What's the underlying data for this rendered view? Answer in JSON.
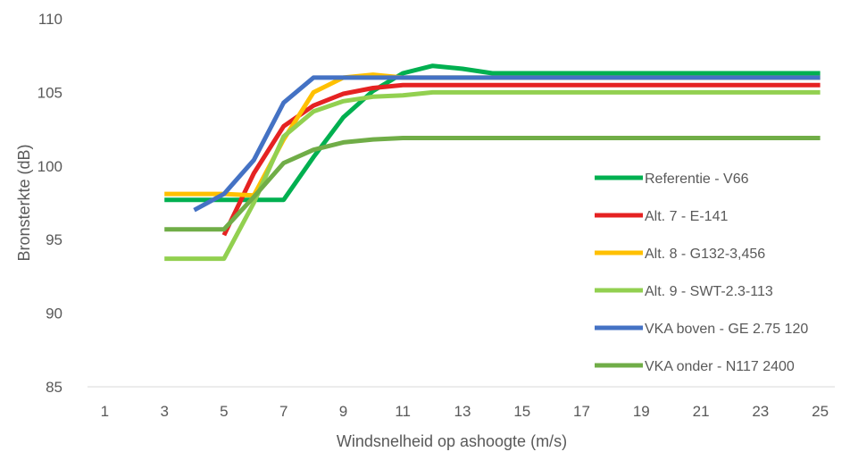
{
  "chart_data": {
    "type": "line",
    "title": "",
    "xlabel": "Windsnelheid op ashoogte (m/s)",
    "ylabel": "Bronsterkte (dB)",
    "xlim": [
      0,
      26
    ],
    "ylim": [
      85,
      110
    ],
    "x_ticks": [
      1,
      3,
      5,
      7,
      9,
      11,
      13,
      15,
      17,
      19,
      21,
      23,
      25
    ],
    "y_ticks": [
      85,
      90,
      95,
      100,
      105,
      110
    ],
    "grid": false,
    "legend_position": "right",
    "series": [
      {
        "name": "Referentie - V66",
        "color": "#00B050",
        "points": [
          [
            3,
            97.7
          ],
          [
            4,
            97.7
          ],
          [
            5,
            97.7
          ],
          [
            6,
            97.7
          ],
          [
            7,
            97.7
          ],
          [
            8,
            100.6
          ],
          [
            9,
            103.3
          ],
          [
            10,
            105.1
          ],
          [
            11,
            106.3
          ],
          [
            12,
            106.8
          ],
          [
            13,
            106.6
          ],
          [
            14,
            106.3
          ],
          [
            15,
            106.3
          ],
          [
            16,
            106.3
          ],
          [
            17,
            106.3
          ],
          [
            18,
            106.3
          ],
          [
            19,
            106.3
          ],
          [
            20,
            106.3
          ],
          [
            21,
            106.3
          ],
          [
            22,
            106.3
          ],
          [
            23,
            106.3
          ],
          [
            24,
            106.3
          ],
          [
            25,
            106.3
          ]
        ]
      },
      {
        "name": "Alt. 7 - E-141",
        "color": "#E52222",
        "points": [
          [
            5,
            95.3
          ],
          [
            6,
            99.5
          ],
          [
            7,
            102.7
          ],
          [
            8,
            104.1
          ],
          [
            9,
            104.9
          ],
          [
            10,
            105.3
          ],
          [
            11,
            105.5
          ],
          [
            12,
            105.5
          ],
          [
            13,
            105.5
          ],
          [
            14,
            105.5
          ],
          [
            15,
            105.5
          ],
          [
            16,
            105.5
          ],
          [
            17,
            105.5
          ],
          [
            18,
            105.5
          ],
          [
            19,
            105.5
          ],
          [
            20,
            105.5
          ],
          [
            21,
            105.5
          ],
          [
            22,
            105.5
          ],
          [
            23,
            105.5
          ],
          [
            24,
            105.5
          ],
          [
            25,
            105.5
          ]
        ]
      },
      {
        "name": "Alt. 8 - G132-3,456",
        "color": "#FFC000",
        "points": [
          [
            3,
            98.1
          ],
          [
            4,
            98.1
          ],
          [
            5,
            98.1
          ],
          [
            6,
            98.0
          ],
          [
            7,
            101.8
          ],
          [
            8,
            105.0
          ],
          [
            9,
            106.0
          ],
          [
            10,
            106.2
          ],
          [
            11,
            106.0
          ],
          [
            12,
            106.0
          ],
          [
            13,
            106.0
          ],
          [
            14,
            106.0
          ],
          [
            15,
            106.0
          ],
          [
            16,
            106.0
          ],
          [
            17,
            106.0
          ],
          [
            18,
            106.0
          ],
          [
            19,
            106.0
          ],
          [
            20,
            106.0
          ],
          [
            21,
            106.0
          ],
          [
            22,
            106.0
          ],
          [
            23,
            106.0
          ],
          [
            24,
            106.0
          ],
          [
            25,
            106.0
          ]
        ]
      },
      {
        "name": "Alt. 9 - SWT-2.3-113",
        "color": "#92D050",
        "points": [
          [
            3,
            93.7
          ],
          [
            4,
            93.7
          ],
          [
            5,
            93.7
          ],
          [
            6,
            97.5
          ],
          [
            7,
            102.0
          ],
          [
            8,
            103.7
          ],
          [
            9,
            104.4
          ],
          [
            10,
            104.7
          ],
          [
            11,
            104.8
          ],
          [
            12,
            105.0
          ],
          [
            13,
            105.0
          ],
          [
            14,
            105.0
          ],
          [
            15,
            105.0
          ],
          [
            16,
            105.0
          ],
          [
            17,
            105.0
          ],
          [
            18,
            105.0
          ],
          [
            19,
            105.0
          ],
          [
            20,
            105.0
          ],
          [
            21,
            105.0
          ],
          [
            22,
            105.0
          ],
          [
            23,
            105.0
          ],
          [
            24,
            105.0
          ],
          [
            25,
            105.0
          ]
        ]
      },
      {
        "name": "VKA boven - GE 2.75 120",
        "color": "#4472C4",
        "points": [
          [
            4,
            97.0
          ],
          [
            5,
            98.1
          ],
          [
            6,
            100.4
          ],
          [
            7,
            104.3
          ],
          [
            8,
            106.0
          ],
          [
            9,
            106.0
          ],
          [
            10,
            106.0
          ],
          [
            11,
            106.0
          ],
          [
            12,
            106.0
          ],
          [
            13,
            106.0
          ],
          [
            14,
            106.0
          ],
          [
            15,
            106.0
          ],
          [
            16,
            106.0
          ],
          [
            17,
            106.0
          ],
          [
            18,
            106.0
          ],
          [
            19,
            106.0
          ],
          [
            20,
            106.0
          ],
          [
            21,
            106.0
          ],
          [
            22,
            106.0
          ],
          [
            23,
            106.0
          ],
          [
            24,
            106.0
          ],
          [
            25,
            106.0
          ]
        ]
      },
      {
        "name": "VKA onder - N117 2400",
        "color": "#70AD47",
        "points": [
          [
            3,
            95.7
          ],
          [
            4,
            95.7
          ],
          [
            5,
            95.7
          ],
          [
            6,
            97.9
          ],
          [
            7,
            100.2
          ],
          [
            8,
            101.1
          ],
          [
            9,
            101.6
          ],
          [
            10,
            101.8
          ],
          [
            11,
            101.9
          ],
          [
            12,
            101.9
          ],
          [
            13,
            101.9
          ],
          [
            14,
            101.9
          ],
          [
            15,
            101.9
          ],
          [
            16,
            101.9
          ],
          [
            17,
            101.9
          ],
          [
            18,
            101.9
          ],
          [
            19,
            101.9
          ],
          [
            20,
            101.9
          ],
          [
            21,
            101.9
          ],
          [
            22,
            101.9
          ],
          [
            23,
            101.9
          ],
          [
            24,
            101.9
          ],
          [
            25,
            101.9
          ]
        ]
      }
    ]
  }
}
